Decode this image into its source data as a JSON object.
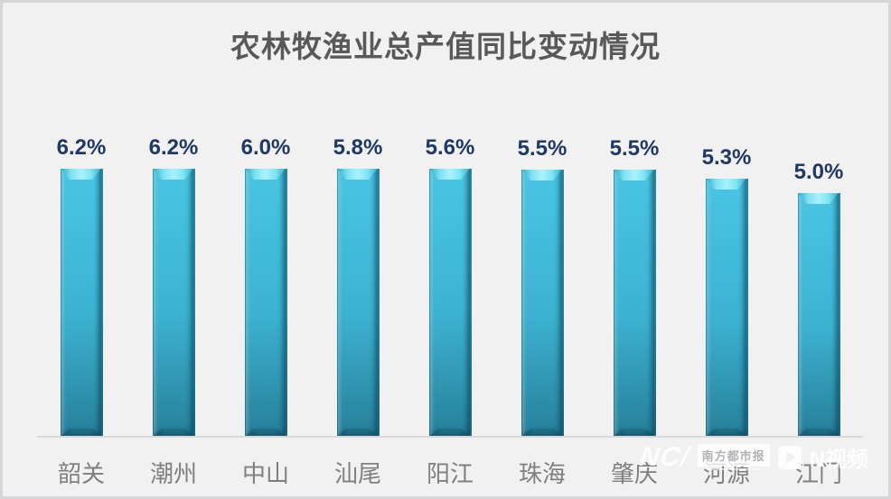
{
  "page": {
    "background": "#f1f1f2",
    "frame_border_color": "#d6d6d8"
  },
  "chart_data": {
    "type": "bar",
    "title": "农林牧渔业总产值同比变动情况",
    "categories": [
      "韶关",
      "潮州",
      "中山",
      "汕尾",
      "阳江",
      "珠海",
      "肇庆",
      "河源",
      "江门"
    ],
    "values": [
      6.2,
      6.2,
      6.0,
      5.8,
      5.6,
      5.5,
      5.5,
      5.3,
      5.0
    ],
    "value_labels": [
      "6.2%",
      "6.2%",
      "6.0%",
      "5.8%",
      "5.6%",
      "5.5%",
      "5.5%",
      "5.3%",
      "5.0%"
    ],
    "xlabel": "",
    "ylabel": "",
    "ylim": [
      0,
      6.2
    ],
    "grid": false,
    "legend": null,
    "colors": {
      "bar_top": "#49c6e4",
      "bar_mid": "#3cb2d1",
      "bar_bottom": "#27809a",
      "bar_bevel_highlight": "#a8f2fc",
      "value_label": "#1f3864",
      "category_label": "#7f7f7f",
      "title": "#595959",
      "axis_line": "#d8d8d8"
    }
  },
  "watermark": {
    "logo_text": "NC/",
    "badge_text": "南方都市报",
    "video_text": "N视频",
    "color": "rgba(255,255,255,0.85)"
  }
}
